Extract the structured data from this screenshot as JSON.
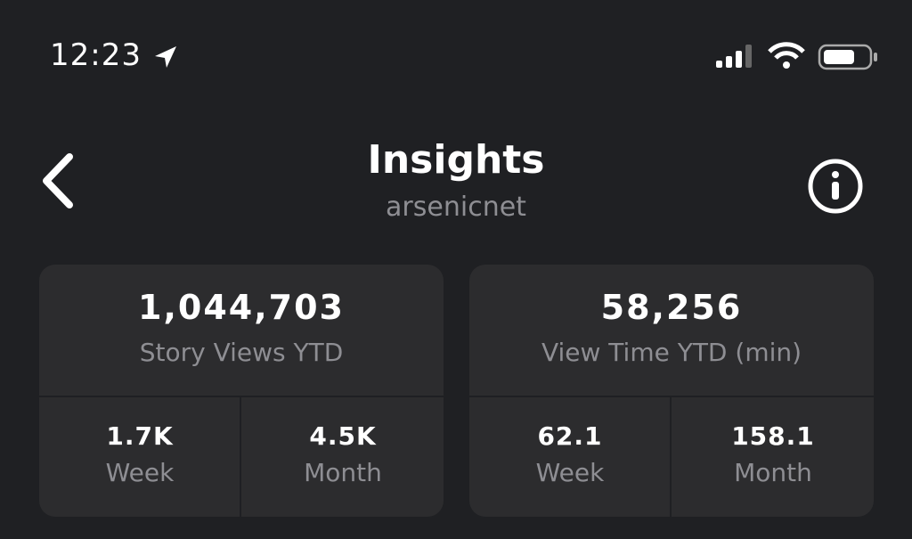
{
  "status_bar": {
    "time": "12:23"
  },
  "header": {
    "title": "Insights",
    "subtitle": "arsenicnet"
  },
  "cards": [
    {
      "value": "1,044,703",
      "label": "Story Views YTD",
      "stats": [
        {
          "value": "1.7K",
          "label": "Week"
        },
        {
          "value": "4.5K",
          "label": "Month"
        }
      ]
    },
    {
      "value": "58,256",
      "label": "View Time YTD (min)",
      "stats": [
        {
          "value": "62.1",
          "label": "Week"
        },
        {
          "value": "158.1",
          "label": "Month"
        }
      ]
    }
  ]
}
